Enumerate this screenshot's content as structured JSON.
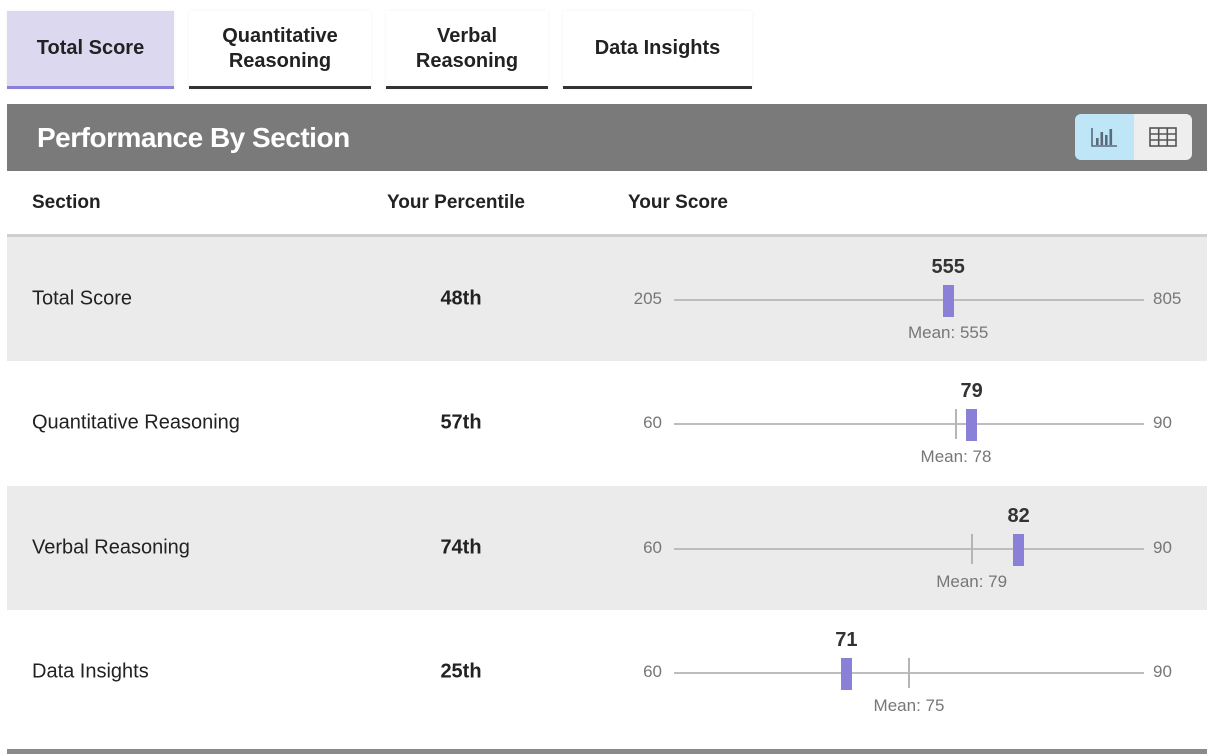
{
  "tabs": [
    {
      "label": "Total Score",
      "active": true
    },
    {
      "label": "Quantitative\nReasoning",
      "active": false
    },
    {
      "label": "Verbal\nReasoning",
      "active": false
    },
    {
      "label": "Data Insights",
      "active": false
    }
  ],
  "card": {
    "title": "Performance By Section",
    "view_toggle": [
      {
        "icon": "bar-chart-icon",
        "active": true
      },
      {
        "icon": "table-grid-icon",
        "active": false
      }
    ]
  },
  "columns": {
    "section": "Section",
    "percentile": "Your Percentile",
    "score": "Your Score"
  },
  "rows": [
    {
      "section": "Total Score",
      "percentile": "48th",
      "score": 555,
      "score_label": "555",
      "min": 205,
      "min_label": "205",
      "max": 805,
      "max_label": "805",
      "mean": 555,
      "mean_label": "Mean: 555"
    },
    {
      "section": "Quantitative Reasoning",
      "percentile": "57th",
      "score": 79,
      "score_label": "79",
      "min": 60,
      "min_label": "60",
      "max": 90,
      "max_label": "90",
      "mean": 78,
      "mean_label": "Mean: 78"
    },
    {
      "section": "Verbal Reasoning",
      "percentile": "74th",
      "score": 82,
      "score_label": "82",
      "min": 60,
      "min_label": "60",
      "max": 90,
      "max_label": "90",
      "mean": 79,
      "mean_label": "Mean: 79"
    },
    {
      "section": "Data Insights",
      "percentile": "25th",
      "score": 71,
      "score_label": "71",
      "min": 60,
      "min_label": "60",
      "max": 90,
      "max_label": "90",
      "mean": 75,
      "mean_label": "Mean: 75"
    }
  ],
  "colors": {
    "accent": "#8b80d8",
    "active_tab": "#dcd8f0",
    "header": "#7a7a7a",
    "toggle_active": "#bfe6f7",
    "row_shade": "#ebebeb"
  }
}
